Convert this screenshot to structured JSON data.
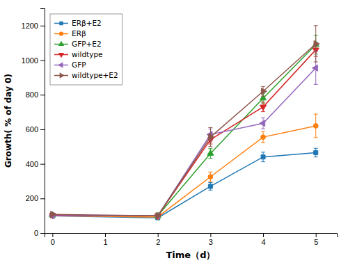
{
  "chart_data": {
    "type": "line",
    "xlabel": "Time（d）",
    "ylabel": "Growth( % of day 0)",
    "x": [
      0,
      2,
      3,
      4,
      5
    ],
    "series": [
      {
        "name": "ERβ+E2",
        "marker": "square",
        "values": [
          100,
          88,
          270,
          440,
          465
        ],
        "errors": [
          5,
          5,
          22,
          28,
          25
        ]
      },
      {
        "name": "ERβ",
        "marker": "circle",
        "values": [
          100,
          93,
          325,
          555,
          620
        ],
        "errors": [
          5,
          5,
          28,
          32,
          68
        ]
      },
      {
        "name": "GFP+E2",
        "marker": "triangle-up",
        "values": [
          103,
          100,
          460,
          780,
          1090
        ],
        "errors": [
          5,
          5,
          28,
          28,
          55
        ]
      },
      {
        "name": "wildtype",
        "marker": "triangle-down",
        "values": [
          103,
          100,
          540,
          730,
          1060
        ],
        "errors": [
          5,
          5,
          25,
          28,
          38
        ]
      },
      {
        "name": "GFP",
        "marker": "triangle-left",
        "values": [
          100,
          100,
          570,
          635,
          955
        ],
        "errors": [
          5,
          5,
          32,
          32,
          95
        ]
      },
      {
        "name": "wildtype+E2",
        "marker": "triangle-right",
        "values": [
          108,
          100,
          555,
          820,
          1095
        ],
        "errors": [
          5,
          5,
          55,
          28,
          105
        ]
      }
    ],
    "xlim": [
      -0.15,
      5.4
    ],
    "ylim": [
      0,
      1300
    ],
    "xticks": [
      0,
      1,
      2,
      3,
      4,
      5
    ],
    "yticks": [
      0,
      200,
      400,
      600,
      800,
      1000,
      1200
    ],
    "legend": "upper left",
    "grid": false
  }
}
